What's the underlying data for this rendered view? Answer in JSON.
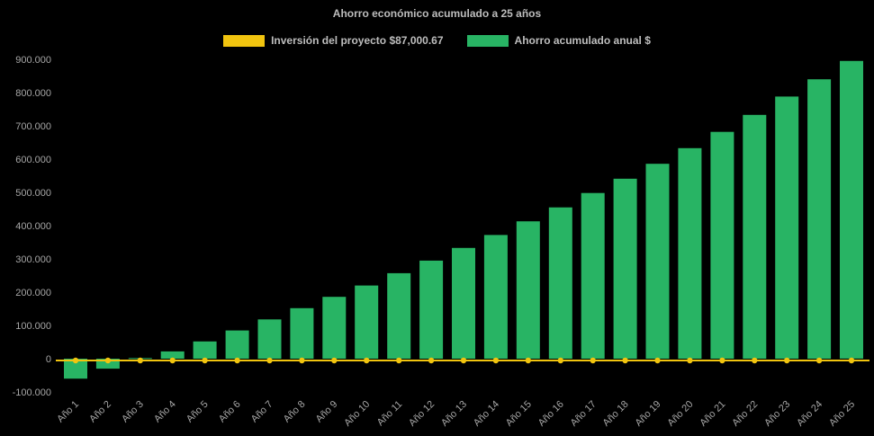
{
  "page": {
    "background_color": "#000000",
    "text_color": "#a6a6a6",
    "title_color": "#bdbdbd"
  },
  "chart_data": {
    "type": "bar",
    "title": "Ahorro económico acumulado a 25 años",
    "xlabel": "",
    "ylabel": "",
    "ylim": [
      -100000,
      900000
    ],
    "ytick_step": 100000,
    "grid": false,
    "legend_position": "top",
    "categories": [
      "Año 1",
      "Año 2",
      "Año 3",
      "Año 4",
      "Año 5",
      "Año 6",
      "Año 7",
      "Año 8",
      "Año 9",
      "Año 10",
      "Año 11",
      "Año 12",
      "Año 13",
      "Año 14",
      "Año 15",
      "Año 16",
      "Año 17",
      "Año 18",
      "Año 19",
      "Año 20",
      "Año 21",
      "Año 22",
      "Año 23",
      "Año 24",
      "Año 25"
    ],
    "series": [
      {
        "name": "Inversión del proyecto $87,000.67",
        "type": "line",
        "color": "#f1c40f",
        "constant": 0
      },
      {
        "name": "Ahorro acumulado anual $",
        "type": "bar",
        "color": "#28b464",
        "values": [
          -60000,
          -30000,
          2000,
          22000,
          52000,
          85000,
          118000,
          152000,
          186000,
          220000,
          257000,
          295000,
          333000,
          372000,
          413000,
          455000,
          498000,
          541000,
          586000,
          633000,
          682000,
          733000,
          788000,
          840000,
          895000
        ]
      }
    ]
  }
}
